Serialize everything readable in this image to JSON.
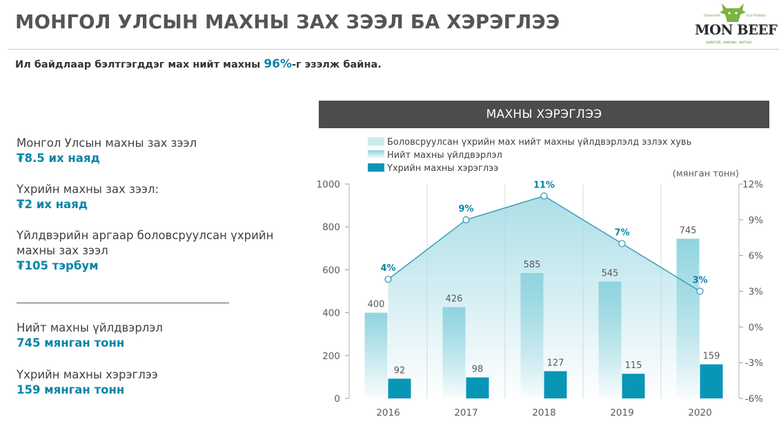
{
  "header": {
    "title": "МОНГОЛ УЛСЫН МАХНЫ ЗАХ ЗЭЭЛ БА ХЭРЭГЛЭЭ",
    "logo": {
      "brand": "MON BEEF",
      "tag_left": "Grass-Fed",
      "tag_right": "Eco Product",
      "slogan": "шимтэй, зөөлөн, амтлаг"
    }
  },
  "subtitle": {
    "prefix": "Ил байдлаар бэлтгэгддэг мах нийт махны ",
    "highlight": "96%",
    "suffix": "-г эзэлж байна."
  },
  "stats": [
    {
      "label": "Монгол Улсын махны зах зээл",
      "value": "₮8.5 их наяд"
    },
    {
      "label": "Үхрийн махны зах зээл:",
      "value": "₮2 их наяд"
    },
    {
      "label": "Үйлдвэрийн аргаар боловсруулсан үхрийн махны зах зээл",
      "value": "₮105 тэрбум"
    },
    {
      "label": "Нийт махны үйлдвэрлэл",
      "value": "745 мянган тонн"
    },
    {
      "label": "Үхрийн махны хэрэглээ",
      "value": "159 мянган тонн"
    }
  ],
  "colors": {
    "accent": "#0a84a8",
    "bar_consumption": "#0896b7",
    "bar_production": "#8fd3de",
    "line": "#3b9bb8",
    "area": "#a8dde6",
    "chart_header_bg": "#4b4c4e"
  },
  "chart_data": {
    "type": "bar",
    "title": "МАХНЫ ХЭРЭГЛЭЭ",
    "unit_note": "(мянган тонн)",
    "categories": [
      "2016",
      "2017",
      "2018",
      "2019",
      "2020"
    ],
    "ylim": [
      0,
      1000
    ],
    "yticks": [
      0,
      200,
      400,
      600,
      800,
      1000
    ],
    "y2lim": [
      -6,
      12
    ],
    "y2ticks": [
      "-6%",
      "-3%",
      "0%",
      "3%",
      "6%",
      "9%",
      "12%"
    ],
    "legend_position": "top",
    "grid": "vertical",
    "series": [
      {
        "name": "Боловсруулсан үхрийн мах нийт махны үйлдвэрлэлд эзлэх хувь",
        "type": "line-area",
        "axis": "right",
        "values": [
          4,
          9,
          11,
          7,
          3
        ],
        "labels": [
          "4%",
          "9%",
          "11%",
          "7%",
          "3%"
        ]
      },
      {
        "name": "Нийт махны үйлдвэрлэл",
        "type": "bar",
        "axis": "left",
        "values": [
          400,
          426,
          585,
          545,
          745
        ]
      },
      {
        "name": "Үхрийн махны хэрэглээ",
        "type": "bar",
        "axis": "left",
        "values": [
          92,
          98,
          127,
          115,
          159
        ]
      }
    ]
  }
}
